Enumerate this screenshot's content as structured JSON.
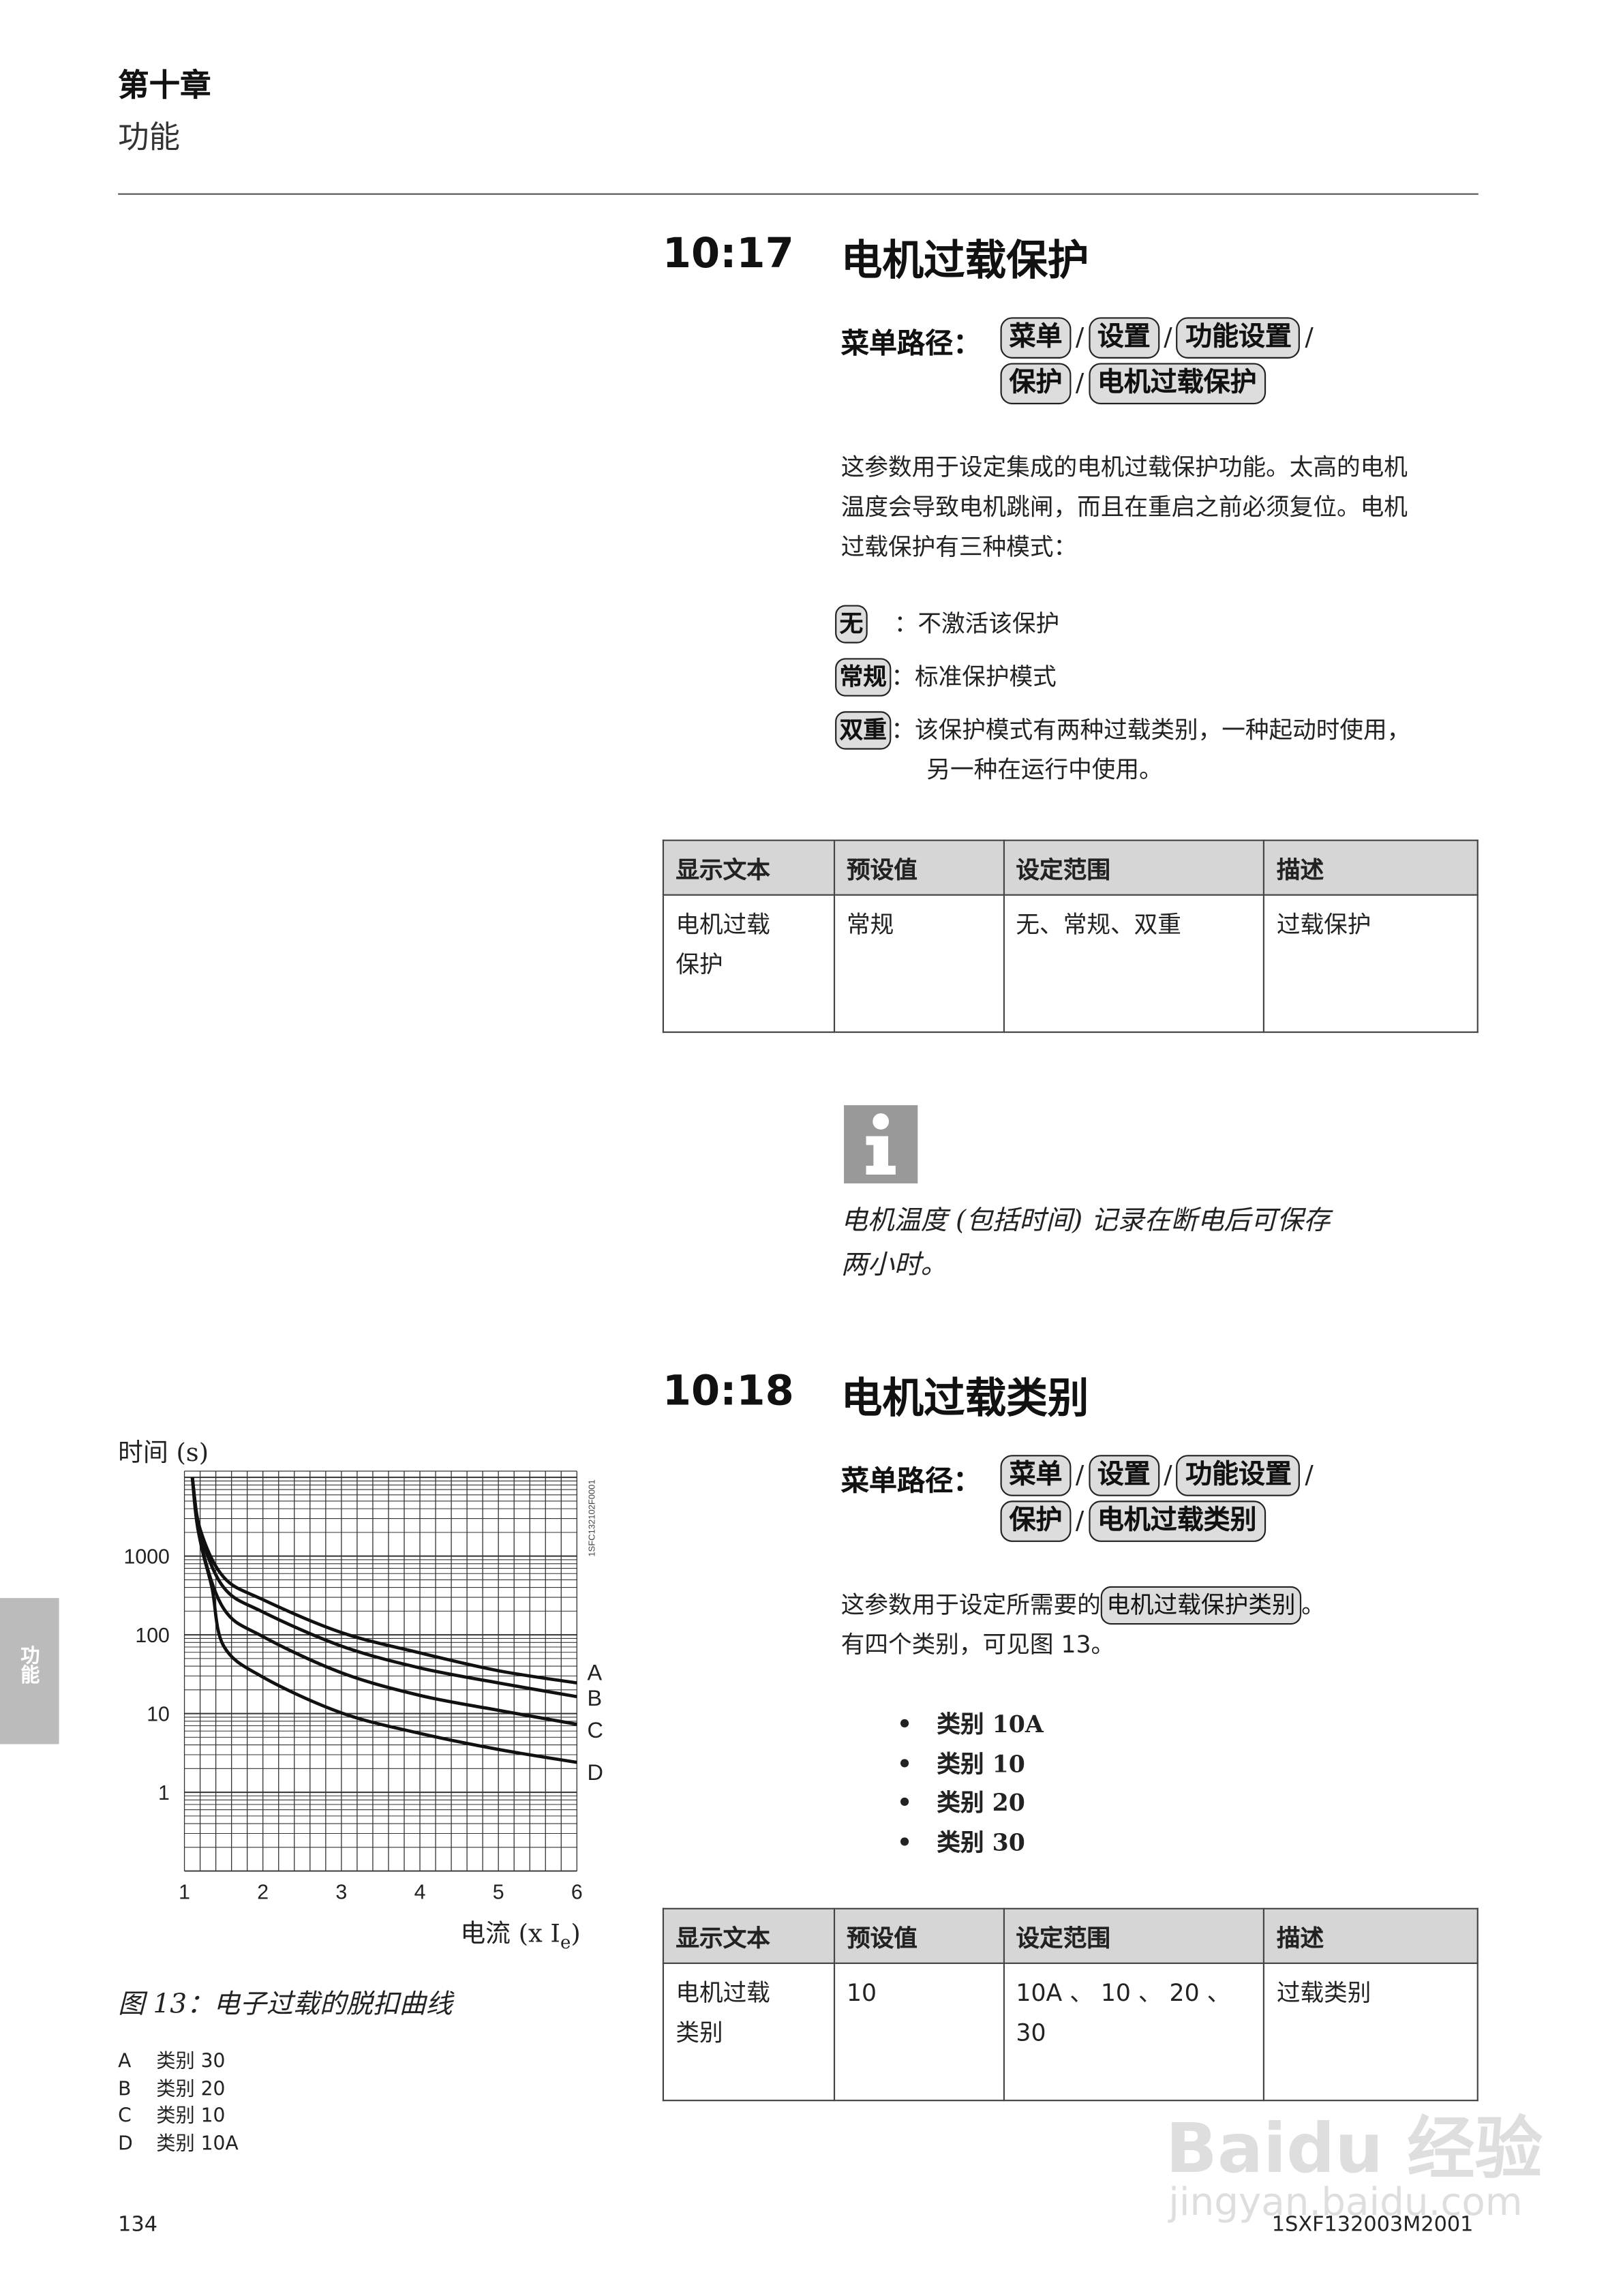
{
  "header": {
    "chapter": "第十章",
    "chapter_title": "功能"
  },
  "side_tab": "功能",
  "section1": {
    "number": "10:17",
    "title": "电机过载保护",
    "menu_path_label": "菜单路径：",
    "menu_path": [
      "菜单",
      "设置",
      "功能设置",
      "保护",
      "电机过载保护"
    ],
    "paragraph": [
      "这参数用于设定集成的电机过载保护功能。太高的电机",
      "温度会导致电机跳闸，而且在重启之前必须复位。电机",
      "过载保护有三种模式："
    ],
    "options": [
      {
        "key": "无",
        "text": "：不激活该保护"
      },
      {
        "key": "常规",
        "text": "：标准保护模式"
      },
      {
        "key": "双重",
        "text": "：该保护模式有两种过载类别，一种起动时使用，",
        "text2": "另一种在运行中使用。"
      }
    ],
    "table": {
      "headers": [
        "显示文本",
        "预设值",
        "设定范围",
        "描述"
      ],
      "rows": [
        [
          "电机过载\n保护",
          "常规",
          "无、常规、双重",
          "过载保护"
        ]
      ]
    },
    "info_icon": "info-icon",
    "note": [
      "电机温度 (包括时间) 记录在断电后可保存",
      "两小时。"
    ]
  },
  "section2": {
    "number": "10:18",
    "title": "电机过载类别",
    "menu_path_label": "菜单路径：",
    "menu_path": [
      "菜单",
      "设置",
      "功能设置",
      "保护",
      "电机过载类别"
    ],
    "paragraph_pre": "这参数用于设定所需要的",
    "paragraph_key": "电机过载保护类别",
    "paragraph_post": "。",
    "paragraph2": "有四个类别，可见图 13。",
    "bullets": [
      "类别 10A",
      "类别 10",
      "类别 20",
      "类别 30"
    ],
    "table": {
      "headers": [
        "显示文本",
        "预设值",
        "设定范围",
        "描述"
      ],
      "rows": [
        [
          "电机过载\n类别",
          "10",
          "10A 、 10 、 20 、\n30",
          "过载类别"
        ]
      ]
    }
  },
  "chart_data": {
    "type": "line",
    "ylabel": "时间 (s)",
    "xlabel": "电流 (x I",
    "xlabel_sub": "e",
    "xlabel_end": ")",
    "x_ticks": [
      "1",
      "2",
      "3",
      "4",
      "5",
      "6"
    ],
    "y_ticks": [
      "1",
      "10",
      "100",
      "1000"
    ],
    "xlim": [
      1,
      6
    ],
    "ylim": [
      0.1,
      12000
    ],
    "yscale": "log",
    "grid": true,
    "code": "1SFC132102F0001",
    "series": [
      {
        "name": "A",
        "x": [
          1.1,
          1.2,
          1.5,
          2,
          3,
          4,
          5,
          6
        ],
        "y": [
          10000,
          2200,
          540,
          280,
          107,
          59,
          35,
          24.5
        ]
      },
      {
        "name": "B",
        "x": [
          1.1,
          1.2,
          1.5,
          2,
          3,
          4,
          5,
          6
        ],
        "y": [
          10000,
          2000,
          400,
          195,
          72,
          38,
          24.5,
          16.4
        ]
      },
      {
        "name": "C",
        "x": [
          1.1,
          1.2,
          1.5,
          2,
          3,
          4,
          5,
          6
        ],
        "y": [
          10000,
          1600,
          215,
          95,
          33,
          17,
          11,
          7.3
        ]
      },
      {
        "name": "D",
        "x": [
          1.1,
          1.2,
          1.35,
          1.5,
          2,
          3,
          4,
          5,
          6
        ],
        "y": [
          10000,
          1600,
          400,
          72,
          29,
          10.2,
          5.6,
          3.5,
          2.4
        ]
      }
    ],
    "caption": "图 13：电子过载的脱扣曲线",
    "legend": [
      {
        "key": "A",
        "text": "类别 30"
      },
      {
        "key": "B",
        "text": "类别 20"
      },
      {
        "key": "C",
        "text": "类别 10"
      },
      {
        "key": "D",
        "text": "类别 10A"
      }
    ]
  },
  "footer": {
    "page_number": "134",
    "doc_id": "1SXF132003M2001"
  },
  "watermark": {
    "text": "Baidu 经验",
    "url_text": "jingyan.baidu.com"
  }
}
